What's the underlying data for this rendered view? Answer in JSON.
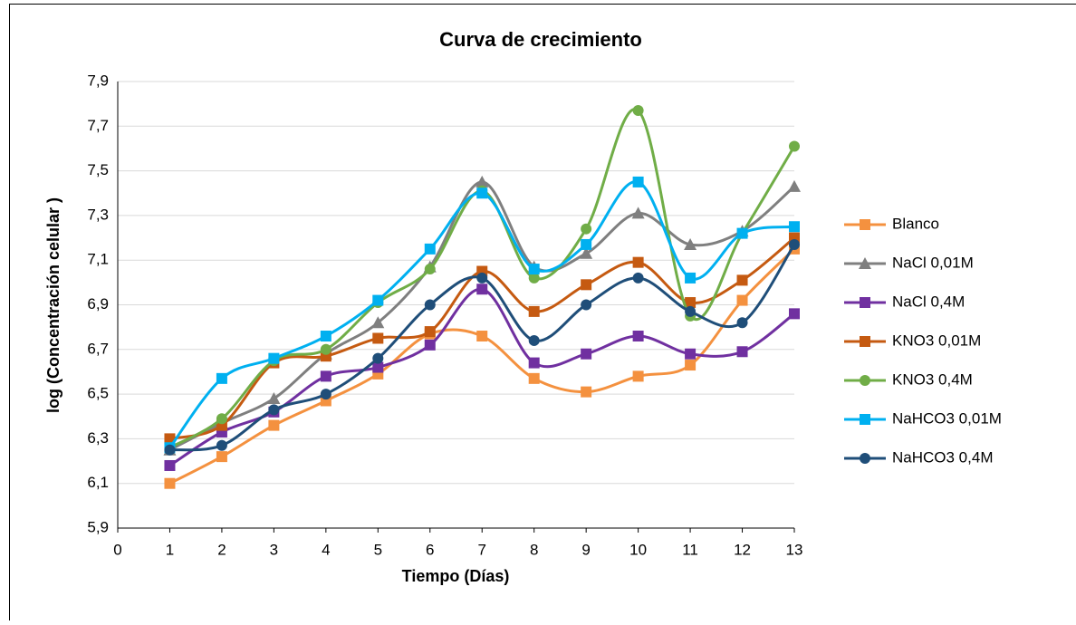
{
  "chart_data": {
    "type": "line",
    "title": "Curva de crecimiento",
    "xlabel": "Tiempo (Días)",
    "ylabel": "log (Concentración celular )",
    "x": [
      1,
      2,
      3,
      4,
      5,
      6,
      7,
      8,
      9,
      10,
      11,
      12,
      13
    ],
    "xlim": [
      0,
      13
    ],
    "xticks": [
      0,
      1,
      2,
      3,
      4,
      5,
      6,
      7,
      8,
      9,
      10,
      11,
      12,
      13
    ],
    "ylim": [
      5.9,
      7.9
    ],
    "yticks": [
      {
        "value": 5.9,
        "label": "5,9"
      },
      {
        "value": 6.1,
        "label": "6,1"
      },
      {
        "value": 6.3,
        "label": "6,3"
      },
      {
        "value": 6.5,
        "label": "6,5"
      },
      {
        "value": 6.7,
        "label": "6,7"
      },
      {
        "value": 6.9,
        "label": "6,9"
      },
      {
        "value": 7.1,
        "label": "7,1"
      },
      {
        "value": 7.3,
        "label": "7,3"
      },
      {
        "value": 7.5,
        "label": "7,5"
      },
      {
        "value": 7.7,
        "label": "7,7"
      },
      {
        "value": 7.9,
        "label": "7,9"
      }
    ],
    "grid": true,
    "smooth": true,
    "legend": "right",
    "series": [
      {
        "name": "Blanco",
        "color": "#f4913f",
        "marker": "square",
        "values": [
          6.1,
          6.22,
          6.36,
          6.47,
          6.59,
          6.77,
          6.76,
          6.57,
          6.51,
          6.58,
          6.63,
          6.92,
          7.15
        ]
      },
      {
        "name": "NaCl 0,01M",
        "color": "#7f7f7f",
        "marker": "triangle",
        "values": [
          6.25,
          6.37,
          6.48,
          6.68,
          6.82,
          7.07,
          7.45,
          7.07,
          7.13,
          7.31,
          7.17,
          7.23,
          7.43
        ]
      },
      {
        "name": "NaCl 0,4M",
        "color": "#7030a0",
        "marker": "square",
        "values": [
          6.18,
          6.33,
          6.42,
          6.58,
          6.62,
          6.72,
          6.97,
          6.64,
          6.68,
          6.76,
          6.68,
          6.69,
          6.86
        ]
      },
      {
        "name": "KNO3 0,01M",
        "color": "#c55a11",
        "marker": "square",
        "values": [
          6.3,
          6.36,
          6.64,
          6.67,
          6.75,
          6.78,
          7.05,
          6.87,
          6.99,
          7.09,
          6.91,
          7.01,
          7.2
        ]
      },
      {
        "name": "KNO3 0,4M",
        "color": "#70ad47",
        "marker": "circle",
        "values": [
          6.26,
          6.39,
          6.65,
          6.7,
          6.91,
          7.06,
          7.41,
          7.02,
          7.24,
          7.77,
          6.85,
          7.22,
          7.61
        ]
      },
      {
        "name": "NaHCO3 0,01M",
        "color": "#00b0f0",
        "marker": "square",
        "values": [
          6.26,
          6.57,
          6.66,
          6.76,
          6.92,
          7.15,
          7.4,
          7.06,
          7.17,
          7.45,
          7.02,
          7.22,
          7.25
        ]
      },
      {
        "name": "NaHCO3 0,4M",
        "color": "#1f4e79",
        "marker": "circle",
        "values": [
          6.25,
          6.27,
          6.43,
          6.5,
          6.66,
          6.9,
          7.02,
          6.74,
          6.9,
          7.02,
          6.87,
          6.82,
          7.17
        ]
      }
    ]
  }
}
